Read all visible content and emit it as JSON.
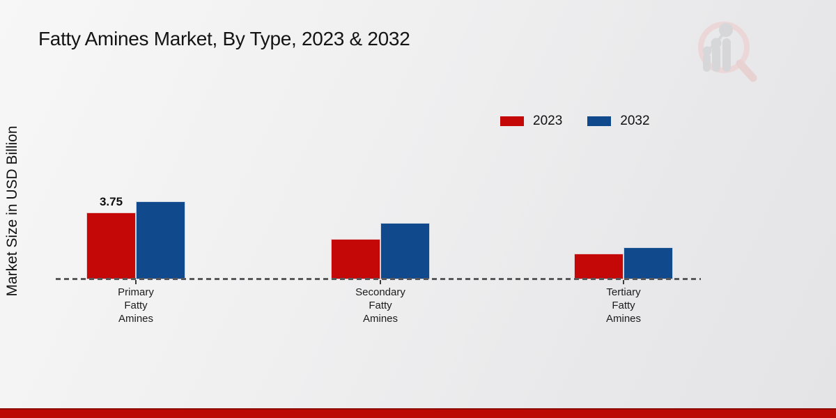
{
  "page": {
    "title": "Fatty Amines Market, By Type, 2023 & 2032",
    "ylabel": "Market Size in USD Billion"
  },
  "colors": {
    "series_2023": "#c40707",
    "series_2032": "#114a8c",
    "footer_accent": "#bb0a03",
    "axis_line": "#58585a",
    "title_text": "#141414"
  },
  "icons": {
    "watermark": "magnifier-bar-chart-logo"
  },
  "chart_data": {
    "type": "bar",
    "title": "Fatty Amines Market, By Type, 2023 & 2032",
    "xlabel": "",
    "ylabel": "Market Size in USD Billion",
    "categories": [
      "Primary\nFatty\nAmines",
      "Secondary\nFatty\nAmines",
      "Tertiary\nFatty\nAmines"
    ],
    "series": [
      {
        "name": "2023",
        "color": "#c40707",
        "values": [
          3.75,
          2.27,
          1.45
        ],
        "data_labels": [
          "3.75",
          "",
          ""
        ]
      },
      {
        "name": "2032",
        "color": "#114a8c",
        "values": [
          4.38,
          3.16,
          1.8
        ],
        "data_labels": [
          "",
          "",
          ""
        ]
      }
    ],
    "ylim": [
      0,
      5
    ],
    "grid": false,
    "legend_position": "top-right",
    "baseline_style": "dashed",
    "y_axis_ticks_visible": false
  }
}
